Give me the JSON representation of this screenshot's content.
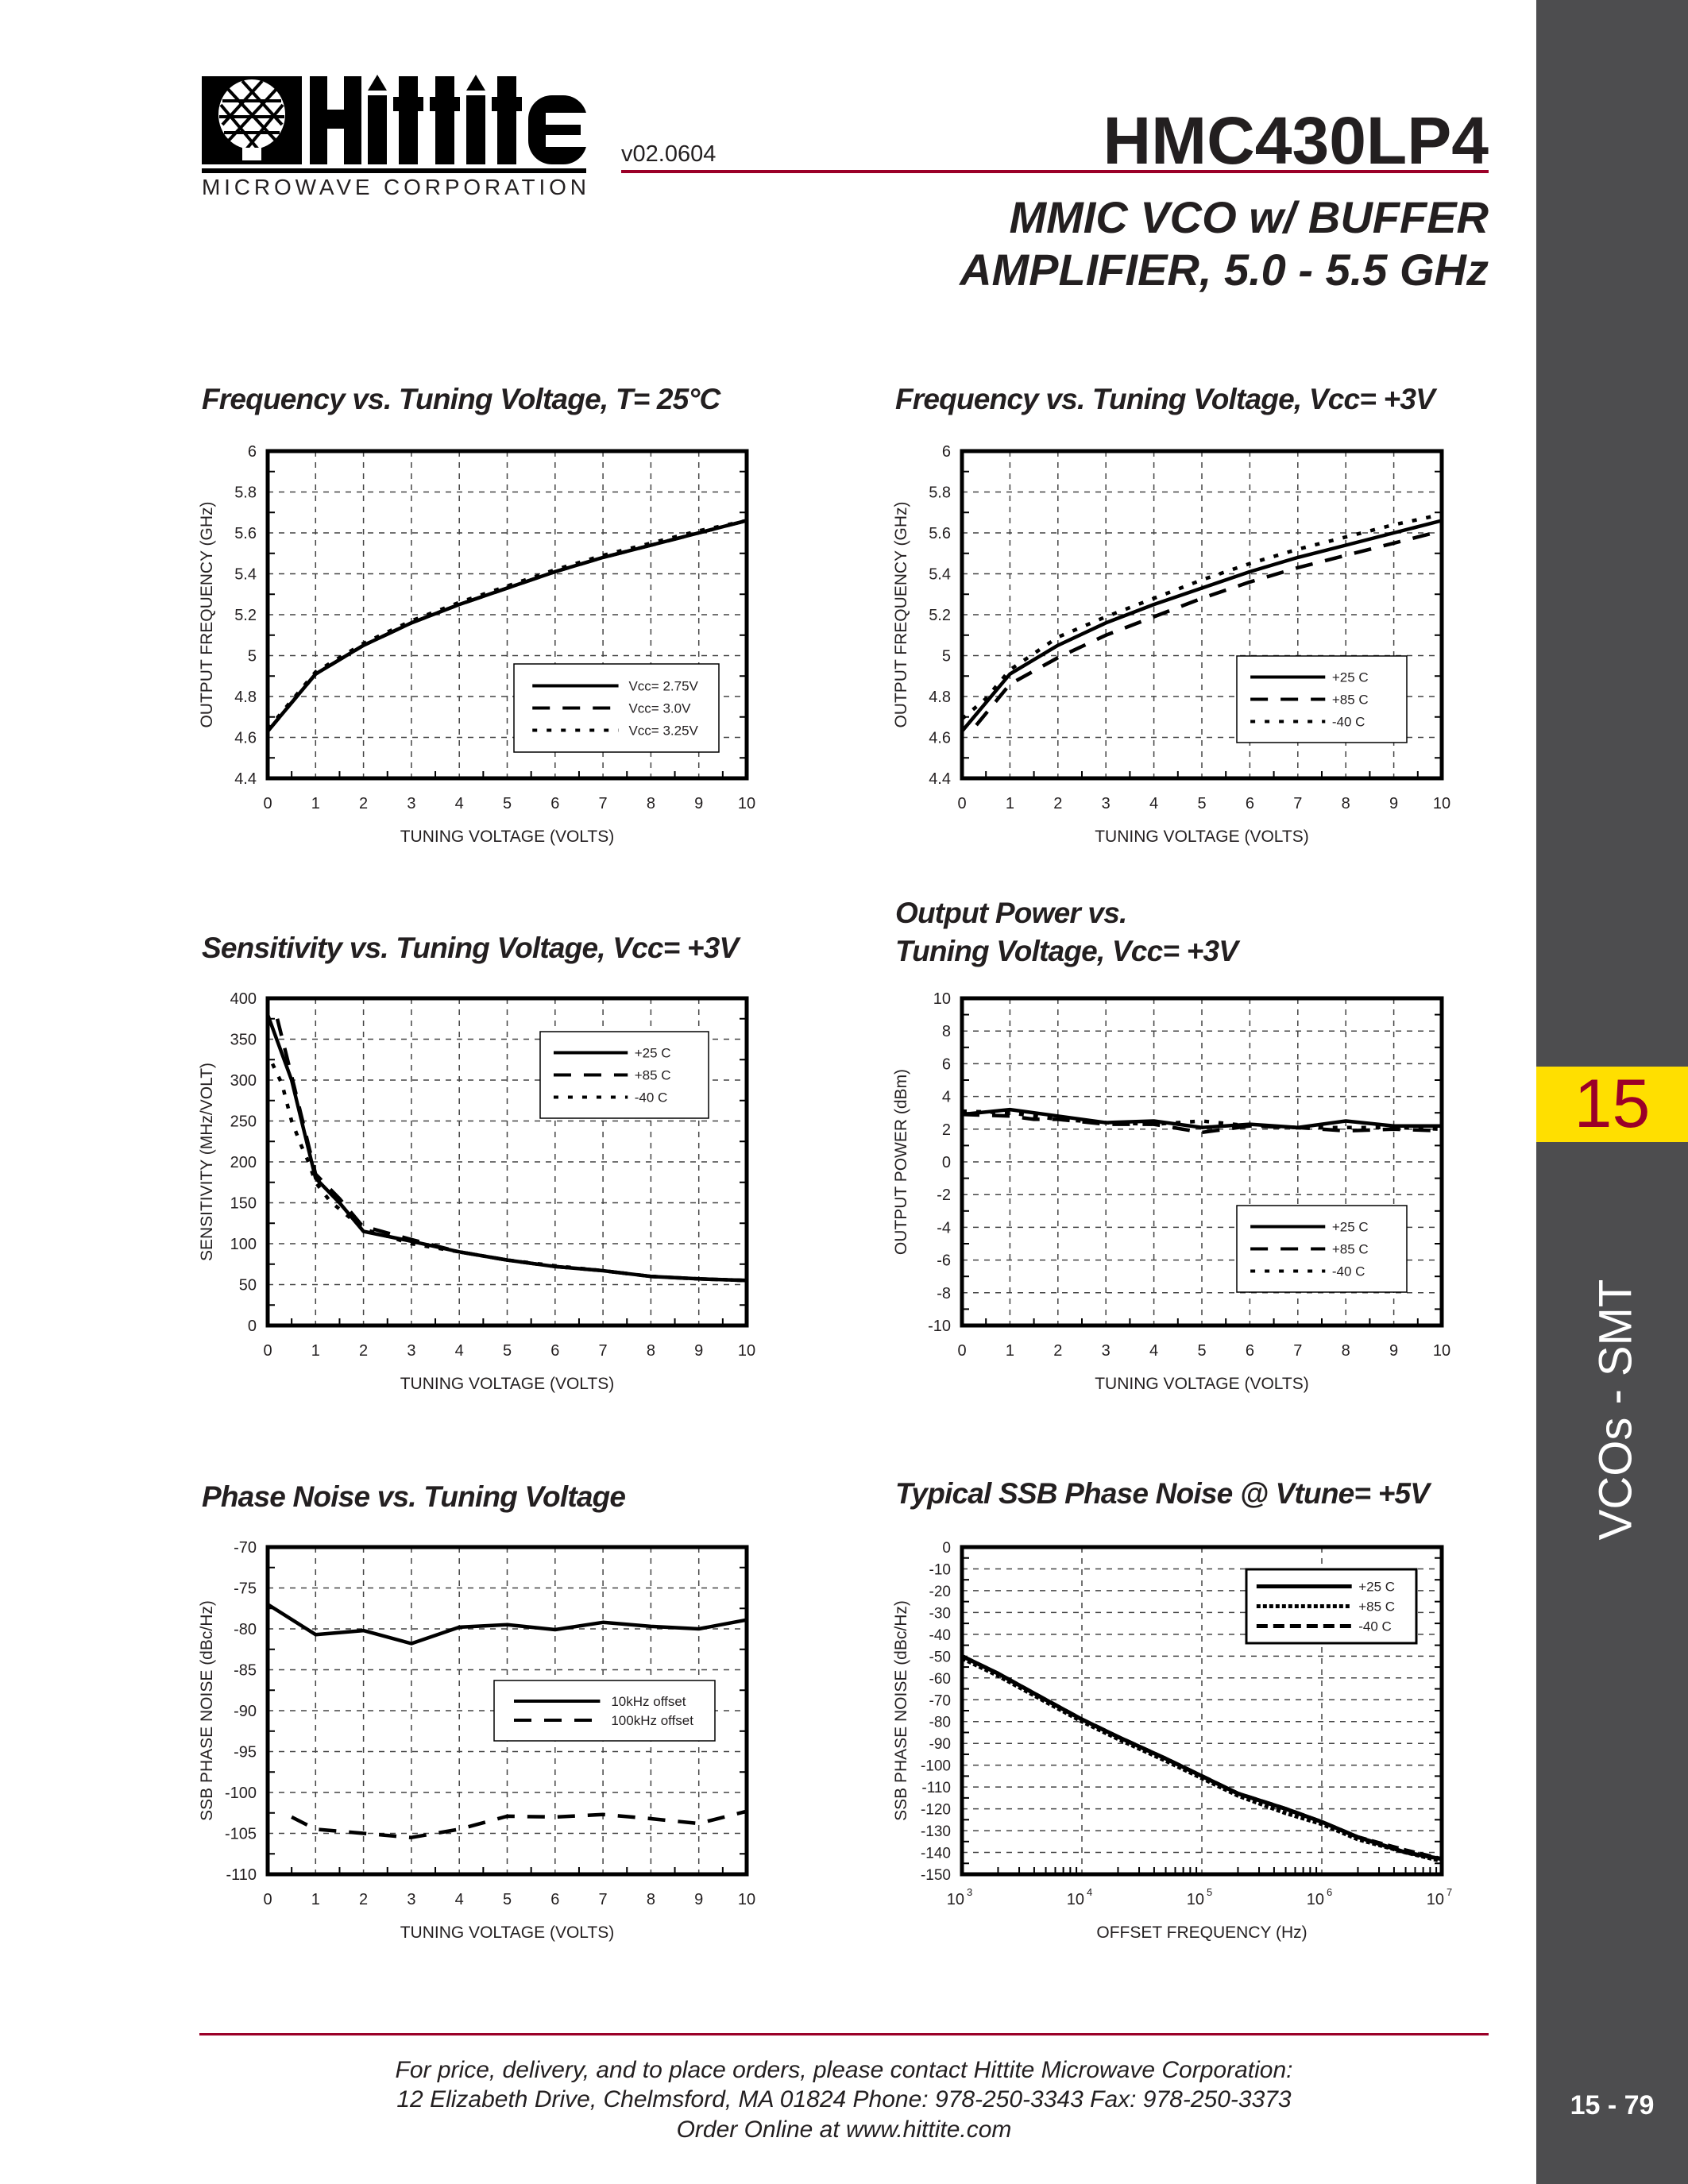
{
  "header": {
    "logo_text": "Hittite",
    "logo_subtext": "MICROWAVE CORPORATION",
    "version": "v02.0604",
    "part_number": "HMC430LP4",
    "subtitle_line1": "MMIC VCO w/ BUFFER",
    "subtitle_line2": "AMPLIFIER, 5.0 - 5.5 GHz"
  },
  "sidebar": {
    "section_number": "15",
    "section_label": "VCOs - SMT",
    "page_number": "15 - 79"
  },
  "footer": {
    "line1": "For price, delivery, and to place orders, please contact Hittite Microwave Corporation:",
    "line2": "12 Elizabeth Drive, Chelmsford, MA 01824 Phone: 978-250-3343  Fax: 978-250-3373",
    "line3": "Order Online at www.hittite.com"
  },
  "colors": {
    "accent_red": "#9b0028",
    "sidebar_gray": "#4d4d4f",
    "section_yellow": "#ffdf00",
    "line": "#000000"
  },
  "chart_data": [
    {
      "type": "line",
      "title_lines": [
        "Frequency vs. Tuning Voltage, T= 25°C"
      ],
      "xlabel": "TUNING VOLTAGE (VOLTS)",
      "ylabel": "OUTPUT FREQUENCY (GHz)",
      "xlim": [
        0,
        10
      ],
      "ylim": [
        4.4,
        6
      ],
      "xticks": [
        0,
        1,
        2,
        3,
        4,
        5,
        6,
        7,
        8,
        9,
        10
      ],
      "xtick_labels": [
        "0",
        "1",
        "2",
        "3",
        "4",
        "5",
        "6",
        "7",
        "8",
        "9",
        "10"
      ],
      "yticks": [
        4.4,
        4.6,
        4.8,
        5,
        5.2,
        5.4,
        5.6,
        5.8,
        6
      ],
      "ytick_labels": [
        "4.4",
        "4.6",
        "4.8",
        "5",
        "5.2",
        "5.4",
        "5.6",
        "5.8",
        "6"
      ],
      "grid": true,
      "legend": "lower-right",
      "series": [
        {
          "name": "Vcc= 2.75V",
          "style": "solid",
          "x": [
            0,
            1,
            2,
            3,
            4,
            5,
            6,
            7,
            8,
            9,
            10
          ],
          "y": [
            4.63,
            4.91,
            5.05,
            5.16,
            5.25,
            5.33,
            5.41,
            5.48,
            5.54,
            5.6,
            5.66
          ]
        },
        {
          "name": "Vcc= 3.0V",
          "style": "dashed",
          "x": [
            0,
            1,
            2,
            3,
            4,
            5,
            6,
            7,
            8,
            9,
            10
          ],
          "y": [
            4.63,
            4.91,
            5.05,
            5.16,
            5.25,
            5.33,
            5.41,
            5.48,
            5.54,
            5.6,
            5.66
          ]
        },
        {
          "name": "Vcc= 3.25V",
          "style": "dotted",
          "x": [
            0,
            1,
            2,
            3,
            4,
            5,
            6,
            7,
            8,
            9,
            10
          ],
          "y": [
            4.64,
            4.92,
            5.06,
            5.17,
            5.26,
            5.34,
            5.42,
            5.49,
            5.55,
            5.61,
            5.66
          ]
        }
      ]
    },
    {
      "type": "line",
      "title_lines": [
        "Frequency vs. Tuning Voltage, Vcc= +3V"
      ],
      "xlabel": "TUNING VOLTAGE (VOLTS)",
      "ylabel": "OUTPUT FREQUENCY (GHz)",
      "xlim": [
        0,
        10
      ],
      "ylim": [
        4.4,
        6
      ],
      "xticks": [
        0,
        1,
        2,
        3,
        4,
        5,
        6,
        7,
        8,
        9,
        10
      ],
      "xtick_labels": [
        "0",
        "1",
        "2",
        "3",
        "4",
        "5",
        "6",
        "7",
        "8",
        "9",
        "10"
      ],
      "yticks": [
        4.4,
        4.6,
        4.8,
        5,
        5.2,
        5.4,
        5.6,
        5.8,
        6
      ],
      "ytick_labels": [
        "4.4",
        "4.6",
        "4.8",
        "5",
        "5.2",
        "5.4",
        "5.6",
        "5.8",
        "6"
      ],
      "grid": true,
      "legend": "lower-right",
      "series": [
        {
          "name": "+25 C",
          "style": "solid",
          "x": [
            0,
            1,
            2,
            3,
            4,
            5,
            6,
            7,
            8,
            9,
            10
          ],
          "y": [
            4.63,
            4.91,
            5.05,
            5.16,
            5.25,
            5.33,
            5.41,
            5.48,
            5.54,
            5.6,
            5.66
          ]
        },
        {
          "name": "+85 C",
          "style": "dashed",
          "x": [
            0.3,
            1,
            2,
            3,
            4,
            5,
            6,
            7,
            8,
            9,
            10
          ],
          "y": [
            4.66,
            4.86,
            4.99,
            5.1,
            5.19,
            5.28,
            5.36,
            5.43,
            5.49,
            5.55,
            5.61
          ]
        },
        {
          "name": "-40 C",
          "style": "dotted",
          "x": [
            0,
            0.5,
            1,
            2,
            3,
            4,
            5,
            6,
            7,
            8,
            9,
            10
          ],
          "y": [
            4.69,
            4.79,
            4.93,
            5.09,
            5.19,
            5.28,
            5.37,
            5.45,
            5.52,
            5.58,
            5.64,
            5.69
          ]
        }
      ]
    },
    {
      "type": "line",
      "title_lines": [
        "Sensitivity vs. Tuning Voltage, Vcc= +3V"
      ],
      "xlabel": "TUNING VOLTAGE (VOLTS)",
      "ylabel": "SENSITIVITY (MHz/VOLT)",
      "xlim": [
        0,
        10
      ],
      "ylim": [
        0,
        400
      ],
      "xticks": [
        0,
        1,
        2,
        3,
        4,
        5,
        6,
        7,
        8,
        9,
        10
      ],
      "xtick_labels": [
        "0",
        "1",
        "2",
        "3",
        "4",
        "5",
        "6",
        "7",
        "8",
        "9",
        "10"
      ],
      "yticks": [
        0,
        50,
        100,
        150,
        200,
        250,
        300,
        350,
        400
      ],
      "ytick_labels": [
        "0",
        "50",
        "100",
        "150",
        "200",
        "250",
        "300",
        "350",
        "400"
      ],
      "grid": true,
      "legend": "upper-right",
      "series": [
        {
          "name": "+25 C",
          "style": "solid",
          "x": [
            0,
            0.5,
            1,
            1.5,
            2,
            3,
            4,
            5,
            6,
            7,
            8,
            9,
            10
          ],
          "y": [
            380,
            300,
            180,
            150,
            115,
            103,
            90,
            80,
            72,
            67,
            60,
            57,
            55
          ]
        },
        {
          "name": "+85 C",
          "style": "dashed",
          "x": [
            0.2,
            0.5,
            1,
            1.5,
            2,
            2.2,
            3,
            4,
            5,
            6,
            7,
            8,
            9,
            10
          ],
          "y": [
            375,
            305,
            185,
            155,
            120,
            118,
            105,
            90,
            80,
            72,
            67,
            60,
            57,
            55
          ]
        },
        {
          "name": "-40 C",
          "style": "dotted",
          "x": [
            0.1,
            0.3,
            0.5,
            0.7,
            0.85,
            1,
            1.3,
            2,
            3,
            4,
            5,
            6,
            7,
            8,
            9,
            10
          ],
          "y": [
            320,
            295,
            250,
            220,
            200,
            175,
            152,
            118,
            100,
            90,
            80,
            73,
            67,
            60,
            57,
            55
          ]
        }
      ]
    },
    {
      "type": "line",
      "title_lines": [
        "Output Power vs.",
        "Tuning Voltage, Vcc= +3V"
      ],
      "xlabel": "TUNING VOLTAGE (VOLTS)",
      "ylabel": "OUTPUT POWER (dBm)",
      "xlim": [
        0,
        10
      ],
      "ylim": [
        -10,
        10
      ],
      "xticks": [
        0,
        1,
        2,
        3,
        4,
        5,
        6,
        7,
        8,
        9,
        10
      ],
      "xtick_labels": [
        "0",
        "1",
        "2",
        "3",
        "4",
        "5",
        "6",
        "7",
        "8",
        "9",
        "10"
      ],
      "yticks": [
        -10,
        -8,
        -6,
        -4,
        -2,
        0,
        2,
        4,
        6,
        8,
        10
      ],
      "ytick_labels": [
        "-10",
        "-8",
        "-6",
        "-4",
        "-2",
        "0",
        "2",
        "4",
        "6",
        "8",
        "10"
      ],
      "grid": true,
      "legend": "lower-right",
      "series": [
        {
          "name": "+25 C",
          "style": "solid",
          "x": [
            0,
            1,
            2,
            3,
            4,
            5,
            6,
            7,
            8,
            9,
            10
          ],
          "y": [
            2.9,
            3.2,
            2.8,
            2.4,
            2.5,
            2.1,
            2.3,
            2.1,
            2.5,
            2.2,
            2.2
          ]
        },
        {
          "name": "+85 C",
          "style": "dashed",
          "x": [
            0,
            1,
            1.5,
            2,
            3,
            4,
            5,
            6,
            7,
            8,
            9,
            10
          ],
          "y": [
            2.9,
            2.8,
            2.6,
            2.6,
            2.3,
            2.3,
            1.8,
            2.2,
            2.1,
            1.9,
            2.0,
            1.9
          ]
        },
        {
          "name": "-40 C",
          "style": "dotted",
          "x": [
            0,
            1,
            2,
            3,
            4,
            5,
            6,
            7,
            8,
            9,
            10
          ],
          "y": [
            3.1,
            3.0,
            2.6,
            2.4,
            2.3,
            2.5,
            2.2,
            2.1,
            2.1,
            2.1,
            2.0
          ]
        }
      ]
    },
    {
      "type": "line",
      "title_lines": [
        "Phase Noise vs. Tuning Voltage"
      ],
      "xlabel": "TUNING VOLTAGE (VOLTS)",
      "ylabel": "SSB PHASE NOISE (dBc/Hz)",
      "xlim": [
        0,
        10
      ],
      "ylim": [
        -110,
        -70
      ],
      "xticks": [
        0,
        1,
        2,
        3,
        4,
        5,
        6,
        7,
        8,
        9,
        10
      ],
      "xtick_labels": [
        "0",
        "1",
        "2",
        "3",
        "4",
        "5",
        "6",
        "7",
        "8",
        "9",
        "10"
      ],
      "yticks": [
        -110,
        -105,
        -100,
        -95,
        -90,
        -85,
        -80,
        -75,
        -70
      ],
      "ytick_labels": [
        "-110",
        "-105",
        "-100",
        "-95",
        "-90",
        "-85",
        "-80",
        "-75",
        "-70"
      ],
      "grid": true,
      "legend": "center-right",
      "series": [
        {
          "name": "10kHz offset",
          "style": "solid",
          "x": [
            0,
            1,
            2,
            3,
            4,
            5,
            6,
            7,
            8,
            9,
            10
          ],
          "y": [
            -77,
            -80.7,
            -80.2,
            -81.8,
            -79.8,
            -79.5,
            -80.1,
            -79.2,
            -79.7,
            -80,
            -78.9
          ]
        },
        {
          "name": "100kHz offset",
          "style": "dashed",
          "x": [
            0.5,
            1,
            2,
            3,
            4,
            5,
            6,
            7,
            8,
            9,
            10
          ],
          "y": [
            -103,
            -104.5,
            -105,
            -105.5,
            -104.5,
            -102.9,
            -103,
            -102.7,
            -103.2,
            -103.8,
            -102.3
          ]
        }
      ]
    },
    {
      "type": "line",
      "title_lines": [
        "Typical SSB Phase Noise @ Vtune= +5V"
      ],
      "xlabel": "OFFSET FREQUENCY (Hz)",
      "ylabel": "SSB PHASE NOISE (dBc/Hz)",
      "xscale": "log",
      "xlim": [
        1000,
        10000000
      ],
      "ylim": [
        -150,
        0
      ],
      "xticks": [
        1000,
        10000,
        100000,
        1000000,
        10000000
      ],
      "xtick_labels": [
        {
          "base": "10",
          "exp": "3"
        },
        {
          "base": "10",
          "exp": "4"
        },
        {
          "base": "10",
          "exp": "5"
        },
        {
          "base": "10",
          "exp": "6"
        },
        {
          "base": "10",
          "exp": "7"
        }
      ],
      "yticks": [
        -150,
        -140,
        -130,
        -120,
        -110,
        -100,
        -90,
        -80,
        -70,
        -60,
        -50,
        -40,
        -30,
        -20,
        -10,
        0
      ],
      "ytick_labels": [
        "-150",
        "-140",
        "-130",
        "-120",
        "-110",
        "-100",
        "-90",
        "-80",
        "-70",
        "-60",
        "-50",
        "-40",
        "-30",
        "-20",
        "-10",
        "0"
      ],
      "grid": true,
      "legend": "upper-right",
      "series": [
        {
          "name": "+25 C",
          "style": "solid",
          "x": [
            1000,
            2000,
            5000,
            10000,
            20000,
            50000,
            100000,
            200000,
            500000,
            1000000,
            2000000,
            5000000,
            10000000
          ],
          "y": [
            -50,
            -58,
            -70,
            -79,
            -87,
            -97,
            -105,
            -113,
            -120,
            -126,
            -133,
            -140,
            -143
          ]
        },
        {
          "name": "+85 C",
          "style": "dotted",
          "x": [
            1000,
            2000,
            5000,
            10000,
            20000,
            50000,
            100000,
            200000,
            500000,
            1000000,
            2000000,
            5000000,
            10000000
          ],
          "y": [
            -51,
            -59,
            -71,
            -80,
            -88,
            -98,
            -106,
            -114,
            -122,
            -127,
            -134,
            -140,
            -144
          ]
        },
        {
          "name": "-40 C",
          "style": "dashed",
          "x": [
            1000,
            2000,
            5000,
            10000,
            20000,
            50000,
            100000,
            200000,
            500000,
            1000000,
            2000000,
            5000000,
            10000000
          ],
          "y": [
            -50,
            -58,
            -70,
            -79,
            -87,
            -97,
            -105,
            -113,
            -120,
            -126,
            -133,
            -139,
            -143
          ]
        }
      ]
    }
  ]
}
